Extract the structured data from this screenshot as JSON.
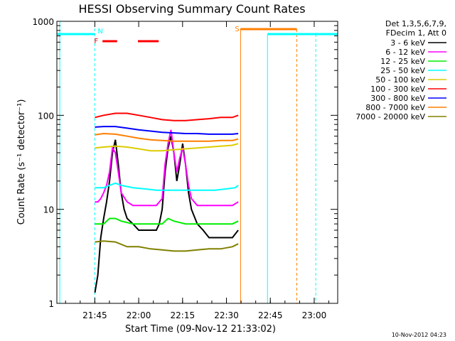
{
  "chart_data": {
    "type": "line",
    "title": "HESSI Observing Summary Count Rates",
    "xlabel": "Start Time (09-Nov-12 21:33:02)",
    "ylabel": "Count Rate (s⁻¹ detector⁻¹)",
    "x_unit": "minutes after 21:33:02",
    "xlim": [
      0,
      96
    ],
    "ylim": [
      1,
      1000
    ],
    "y_scale": "log",
    "grid": false,
    "legend_position": "right",
    "x_ticks": [
      {
        "value": 12.97,
        "label": "21:45"
      },
      {
        "value": 27.97,
        "label": "22:00"
      },
      {
        "value": 42.97,
        "label": "22:15"
      },
      {
        "value": 57.97,
        "label": "22:30"
      },
      {
        "value": 72.97,
        "label": "22:45"
      },
      {
        "value": 87.97,
        "label": "23:00"
      }
    ],
    "y_ticks": [
      {
        "value": 1,
        "label": "1"
      },
      {
        "value": 10,
        "label": "10"
      },
      {
        "value": 100,
        "label": "100"
      },
      {
        "value": 1000,
        "label": "1000"
      }
    ],
    "legend_header": [
      "Det 1,3,5,6,7,9,",
      "FDecim 1, Att 0"
    ],
    "series": [
      {
        "name": "3 - 6 keV",
        "color": "#000000",
        "points": [
          [
            13,
            1.3
          ],
          [
            14,
            2
          ],
          [
            15,
            5
          ],
          [
            16,
            8
          ],
          [
            17,
            12
          ],
          [
            18,
            20
          ],
          [
            19,
            40
          ],
          [
            20,
            55
          ],
          [
            21,
            30
          ],
          [
            22,
            15
          ],
          [
            23,
            10
          ],
          [
            24,
            8
          ],
          [
            26,
            7
          ],
          [
            28,
            6
          ],
          [
            30,
            6
          ],
          [
            32,
            6
          ],
          [
            34,
            6
          ],
          [
            35,
            7
          ],
          [
            36,
            10
          ],
          [
            37,
            25
          ],
          [
            38,
            45
          ],
          [
            39,
            60
          ],
          [
            40,
            40
          ],
          [
            41,
            20
          ],
          [
            42,
            30
          ],
          [
            43,
            50
          ],
          [
            44,
            30
          ],
          [
            45,
            15
          ],
          [
            46,
            10
          ],
          [
            48,
            7
          ],
          [
            50,
            6
          ],
          [
            52,
            5
          ],
          [
            54,
            5
          ],
          [
            56,
            5
          ],
          [
            58,
            5
          ],
          [
            60,
            5
          ],
          [
            62,
            6
          ]
        ]
      },
      {
        "name": "6 - 12 keV",
        "color": "#ff00ff",
        "points": [
          [
            13,
            12
          ],
          [
            14,
            12
          ],
          [
            15,
            13
          ],
          [
            16,
            15
          ],
          [
            17,
            18
          ],
          [
            18,
            25
          ],
          [
            19,
            45
          ],
          [
            20,
            40
          ],
          [
            21,
            25
          ],
          [
            22,
            15
          ],
          [
            24,
            12
          ],
          [
            26,
            11
          ],
          [
            28,
            11
          ],
          [
            30,
            11
          ],
          [
            32,
            11
          ],
          [
            34,
            11
          ],
          [
            36,
            13
          ],
          [
            37,
            30
          ],
          [
            38,
            50
          ],
          [
            39,
            70
          ],
          [
            40,
            40
          ],
          [
            41,
            25
          ],
          [
            42,
            35
          ],
          [
            43,
            45
          ],
          [
            44,
            30
          ],
          [
            45,
            18
          ],
          [
            46,
            13
          ],
          [
            48,
            11
          ],
          [
            50,
            11
          ],
          [
            52,
            11
          ],
          [
            54,
            11
          ],
          [
            56,
            11
          ],
          [
            58,
            11
          ],
          [
            60,
            11
          ],
          [
            62,
            12
          ]
        ]
      },
      {
        "name": "12 - 25 keV",
        "color": "#00ee00",
        "points": [
          [
            13,
            7
          ],
          [
            16,
            7
          ],
          [
            18,
            8
          ],
          [
            20,
            8
          ],
          [
            22,
            7.5
          ],
          [
            26,
            7
          ],
          [
            30,
            7
          ],
          [
            34,
            7
          ],
          [
            36,
            7
          ],
          [
            38,
            8
          ],
          [
            40,
            7.5
          ],
          [
            44,
            7
          ],
          [
            48,
            7
          ],
          [
            52,
            7
          ],
          [
            56,
            7
          ],
          [
            60,
            7
          ],
          [
            62,
            7.5
          ]
        ]
      },
      {
        "name": "25 - 50 keV",
        "color": "#00ffff",
        "points": [
          [
            13,
            17
          ],
          [
            16,
            17
          ],
          [
            18,
            18
          ],
          [
            20,
            19
          ],
          [
            22,
            18
          ],
          [
            26,
            17
          ],
          [
            30,
            16.5
          ],
          [
            34,
            16
          ],
          [
            38,
            16
          ],
          [
            42,
            16
          ],
          [
            46,
            16
          ],
          [
            50,
            16
          ],
          [
            54,
            16
          ],
          [
            58,
            16.5
          ],
          [
            61,
            17
          ],
          [
            62,
            18
          ]
        ]
      },
      {
        "name": "50 - 100 keV",
        "color": "#ddcc00",
        "points": [
          [
            13,
            45
          ],
          [
            16,
            46
          ],
          [
            20,
            47
          ],
          [
            24,
            46
          ],
          [
            28,
            44
          ],
          [
            32,
            42
          ],
          [
            36,
            42
          ],
          [
            40,
            43
          ],
          [
            44,
            44
          ],
          [
            48,
            45
          ],
          [
            52,
            46
          ],
          [
            56,
            47
          ],
          [
            60,
            48
          ],
          [
            62,
            50
          ]
        ]
      },
      {
        "name": "100 - 300 keV",
        "color": "#ff0000",
        "points": [
          [
            13,
            95
          ],
          [
            16,
            100
          ],
          [
            20,
            105
          ],
          [
            24,
            105
          ],
          [
            28,
            100
          ],
          [
            32,
            95
          ],
          [
            36,
            90
          ],
          [
            40,
            88
          ],
          [
            44,
            88
          ],
          [
            48,
            90
          ],
          [
            52,
            92
          ],
          [
            56,
            95
          ],
          [
            60,
            95
          ],
          [
            62,
            100
          ]
        ]
      },
      {
        "name": "300 - 800 keV",
        "color": "#0000ff",
        "points": [
          [
            13,
            75
          ],
          [
            16,
            76
          ],
          [
            20,
            76
          ],
          [
            24,
            73
          ],
          [
            28,
            70
          ],
          [
            32,
            68
          ],
          [
            36,
            66
          ],
          [
            40,
            65
          ],
          [
            44,
            64
          ],
          [
            48,
            64
          ],
          [
            52,
            63
          ],
          [
            56,
            63
          ],
          [
            60,
            63
          ],
          [
            62,
            64
          ]
        ]
      },
      {
        "name": "800 - 7000 keV",
        "color": "#ff7f00",
        "points": [
          [
            13,
            62
          ],
          [
            16,
            64
          ],
          [
            20,
            63
          ],
          [
            24,
            60
          ],
          [
            28,
            57
          ],
          [
            32,
            55
          ],
          [
            36,
            54
          ],
          [
            40,
            53
          ],
          [
            44,
            53
          ],
          [
            48,
            53
          ],
          [
            52,
            53
          ],
          [
            56,
            54
          ],
          [
            60,
            54
          ],
          [
            62,
            56
          ]
        ]
      },
      {
        "name": "7000 - 20000 keV",
        "color": "#808000",
        "points": [
          [
            13,
            4.5
          ],
          [
            16,
            4.6
          ],
          [
            20,
            4.5
          ],
          [
            24,
            4
          ],
          [
            28,
            4
          ],
          [
            32,
            3.8
          ],
          [
            36,
            3.7
          ],
          [
            40,
            3.6
          ],
          [
            44,
            3.6
          ],
          [
            48,
            3.7
          ],
          [
            52,
            3.8
          ],
          [
            56,
            3.8
          ],
          [
            60,
            4
          ],
          [
            62,
            4.3
          ]
        ]
      }
    ],
    "annotations": [
      {
        "label": "N",
        "color": "#00ffff",
        "x": 12.97
      },
      {
        "label": "F",
        "color": "#ff0000",
        "x": 12.97
      },
      {
        "label": "S",
        "color": "#ff7f00",
        "x": 62.8
      }
    ],
    "timestamp": "10-Nov-2012 04:23"
  }
}
